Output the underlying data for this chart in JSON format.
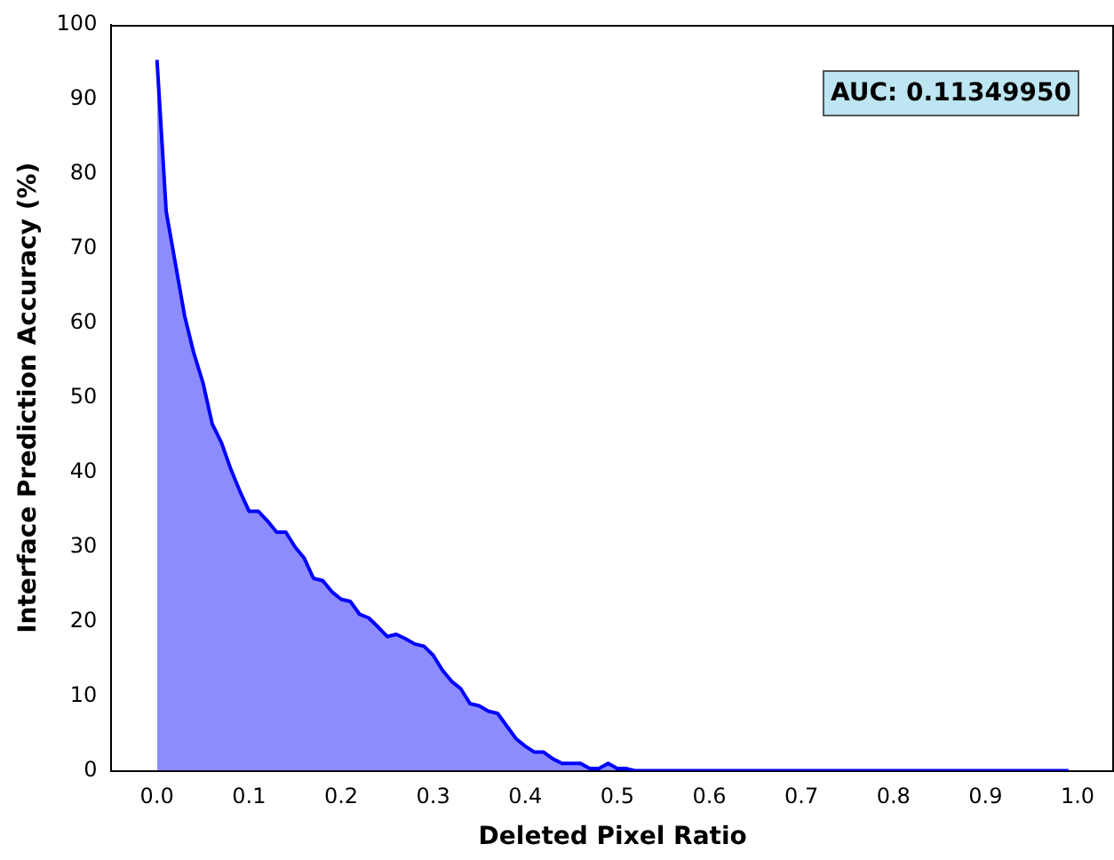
{
  "chart_data": {
    "type": "area",
    "xlabel": "Deleted Pixel Ratio",
    "ylabel": "Interface Prediction Accuracy (%)",
    "annotations": [
      "AUC: 0.11349950"
    ],
    "x": [
      0,
      0.01,
      0.02,
      0.03,
      0.04,
      0.05,
      0.06,
      0.07,
      0.08,
      0.09,
      0.1,
      0.11,
      0.12,
      0.13,
      0.14,
      0.15,
      0.16,
      0.17,
      0.18,
      0.19,
      0.2,
      0.21,
      0.22,
      0.23,
      0.24,
      0.25,
      0.26,
      0.27,
      0.28,
      0.29,
      0.3,
      0.31,
      0.32,
      0.33,
      0.34,
      0.35,
      0.36,
      0.37,
      0.38,
      0.39,
      0.4,
      0.41,
      0.42,
      0.43,
      0.44,
      0.45,
      0.46,
      0.47,
      0.48,
      0.49,
      0.5,
      0.51,
      0.52,
      0.6,
      0.7,
      0.8,
      0.9,
      0.99
    ],
    "series": [
      {
        "color": "#0000ff",
        "values": [
          95.3,
          75,
          68,
          61,
          56,
          52,
          46.5,
          44,
          40.5,
          37.5,
          34.8,
          34.8,
          33.5,
          32,
          32,
          30,
          28.5,
          25.8,
          25.5,
          24,
          23,
          22.7,
          21,
          20.5,
          19.3,
          18,
          18.3,
          17.7,
          17,
          16.7,
          15.5,
          13.5,
          12,
          11,
          9,
          8.7,
          8,
          7.7,
          6,
          4.3,
          3.3,
          2.5,
          2.5,
          1.6,
          1,
          1,
          1,
          0.3,
          0.3,
          1,
          0.3,
          0.3,
          0,
          0,
          0,
          0,
          0,
          0
        ]
      }
    ],
    "xlim": [
      -0.0495,
      1.0395
    ],
    "xticks": [
      {
        "value": 0,
        "label": "0.0"
      },
      {
        "value": 0.1,
        "label": "0.1"
      },
      {
        "value": 0.2,
        "label": "0.2"
      },
      {
        "value": 0.3,
        "label": "0.3"
      },
      {
        "value": 0.4,
        "label": "0.4"
      },
      {
        "value": 0.5,
        "label": "0.5"
      },
      {
        "value": 0.6,
        "label": "0.6"
      },
      {
        "value": 0.7,
        "label": "0.7"
      },
      {
        "value": 0.8,
        "label": "0.8"
      },
      {
        "value": 0.9,
        "label": "0.9"
      },
      {
        "value": 1,
        "label": "1.0"
      }
    ],
    "ylim": [
      0,
      100
    ],
    "yticks": [
      0,
      10,
      20,
      30,
      40,
      50,
      60,
      70,
      80,
      90,
      100
    ],
    "grid": false,
    "legend": false
  }
}
